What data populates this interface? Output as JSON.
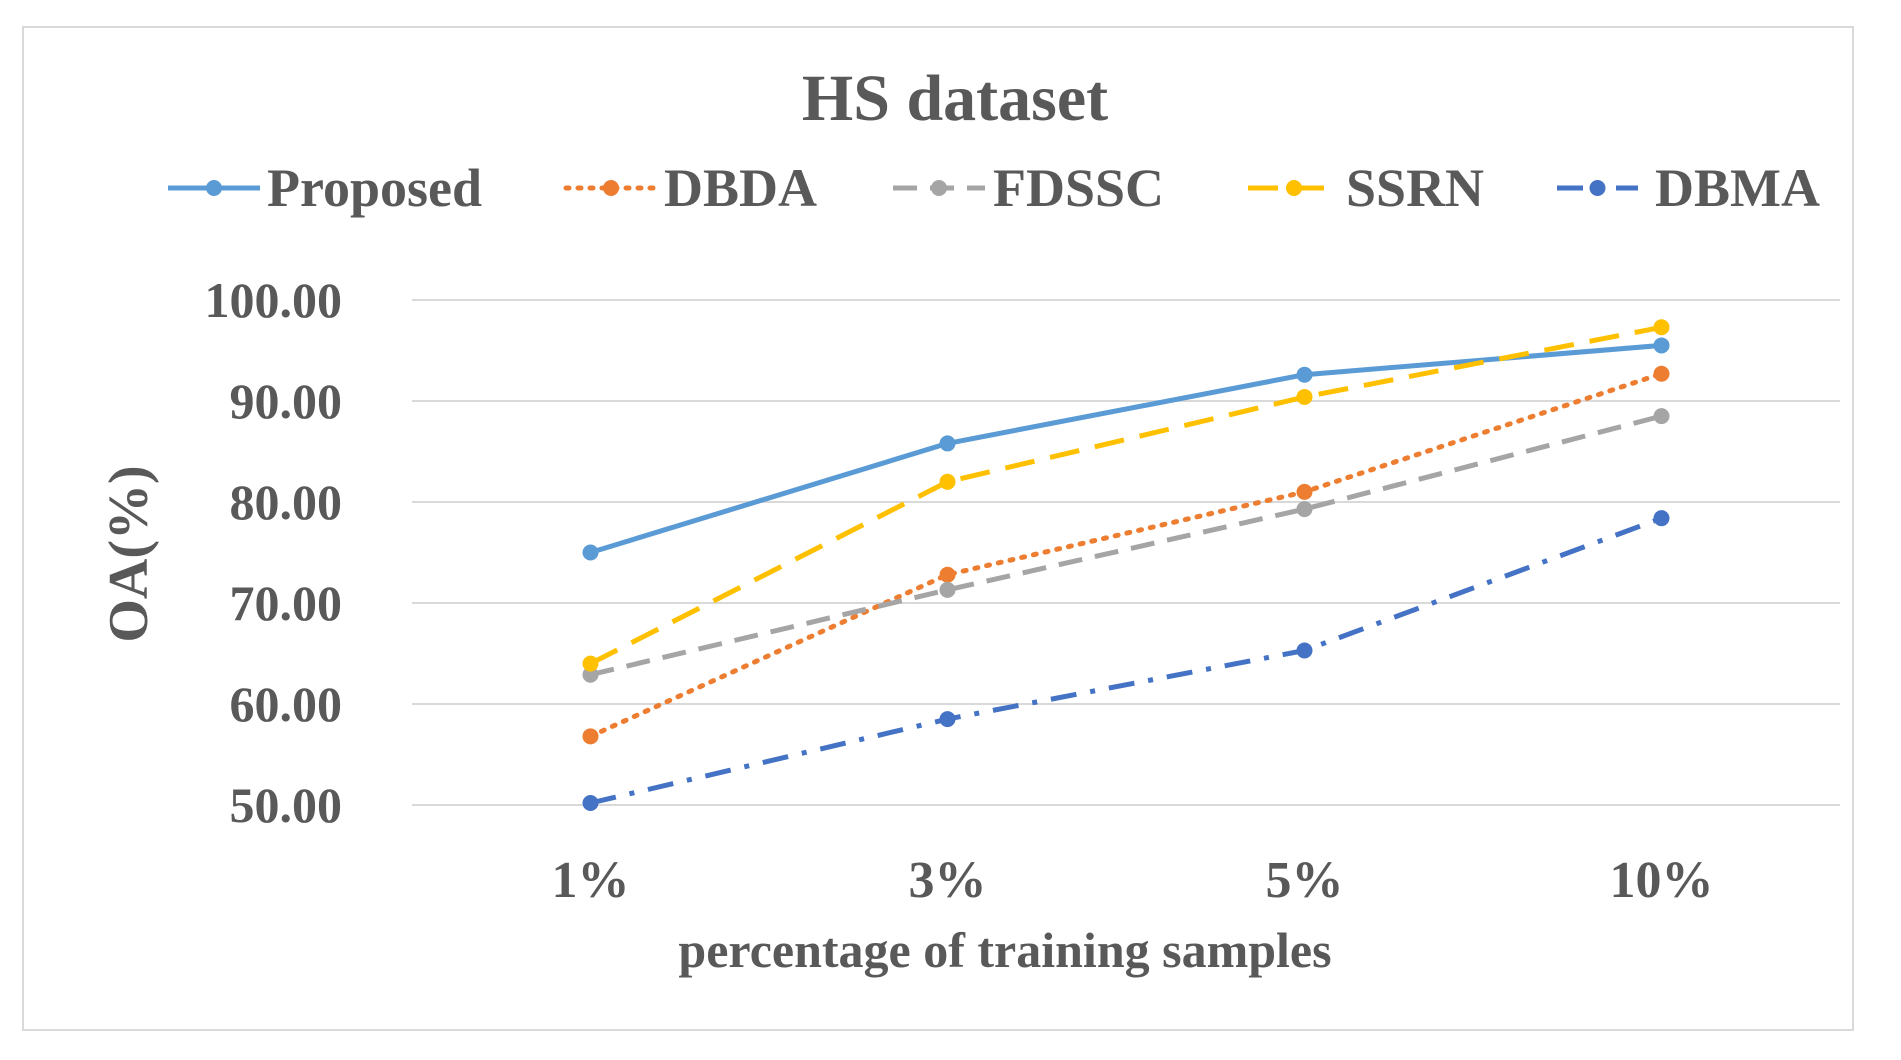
{
  "chart_data": {
    "type": "line",
    "title": "HS dataset",
    "xlabel": "percentage of training samples",
    "ylabel": "OA(%)",
    "categories": [
      "1%",
      "3%",
      "5%",
      "10%"
    ],
    "y_ticks": [
      "50.00",
      "60.00",
      "70.00",
      "80.00",
      "90.00",
      "100.00"
    ],
    "ylim": [
      50,
      100
    ],
    "grid": "horizontal",
    "legend_position": "top",
    "series": [
      {
        "name": "Proposed",
        "values": [
          75.0,
          85.8,
          92.6,
          95.5
        ],
        "color": "#5b9bd5",
        "dash": "solid"
      },
      {
        "name": "DBDA",
        "values": [
          56.8,
          72.8,
          81.0,
          92.7
        ],
        "color": "#ed7d31",
        "dash": "dot"
      },
      {
        "name": "FDSSC",
        "values": [
          62.9,
          71.3,
          79.3,
          88.5
        ],
        "color": "#a5a5a5",
        "dash": "dash"
      },
      {
        "name": "SSRN",
        "values": [
          64.0,
          82.0,
          90.4,
          97.3
        ],
        "color": "#ffc000",
        "dash": "longdash"
      },
      {
        "name": "DBMA",
        "values": [
          50.2,
          58.5,
          65.3,
          78.4
        ],
        "color": "#4472c4",
        "dash": "dashdot"
      }
    ]
  }
}
